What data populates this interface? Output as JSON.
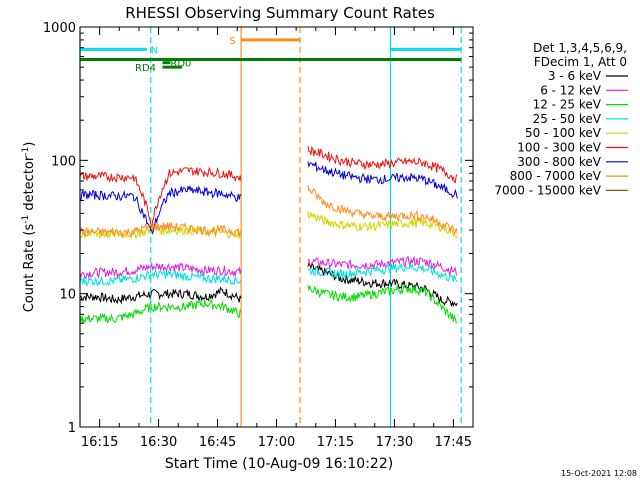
{
  "chart_data": {
    "type": "line",
    "title": "RHESSI Observing Summary Count Rates",
    "xlabel": "Start Time (10-Aug-09 16:10:22)",
    "ylabel_main": "Count Rate (s",
    "ylabel_sup1": "-1",
    "ylabel_mid": " detector",
    "ylabel_sup2": "-1",
    "ylabel_end": ")",
    "yscale": "log",
    "ylim": [
      1,
      1000
    ],
    "xlim_minutes": [
      16.0,
      15.0,
      14.0,
      13.0,
      12.0,
      11.0,
      10.0,
      9.0,
      8.0,
      7.0,
      6.0,
      5.0,
      4.0,
      3.0,
      2.0,
      1.0,
      0.0,
      0.0
    ],
    "x_range": [
      "16:10",
      "17:50"
    ],
    "x_ticks": [
      {
        "t": "16:15",
        "label": "16:15"
      },
      {
        "t": "16:30",
        "label": "16:30"
      },
      {
        "t": "16:45",
        "label": "16:45"
      },
      {
        "t": "17:00",
        "label": "17:00"
      },
      {
        "t": "17:15",
        "label": "17:15"
      },
      {
        "t": "17:30",
        "label": "17:30"
      },
      {
        "t": "17:45",
        "label": "17:45"
      }
    ],
    "y_ticks": [
      {
        "v": 1,
        "label": "1"
      },
      {
        "v": 10,
        "label": "10"
      },
      {
        "v": 100,
        "label": "100"
      },
      {
        "v": 1000,
        "label": "1000"
      }
    ],
    "legend_header": [
      "Det 1,3,4,5,6,9,",
      "FDecim 1, Att 0"
    ],
    "series": [
      {
        "name": "3 - 6 keV",
        "color": "#000000",
        "segments": [
          {
            "from": "16:10",
            "to": "16:51",
            "values": [
              9.5,
              9.5,
              9.0,
              9.5,
              10.0,
              10.0,
              10.0,
              9.5,
              10.5,
              9.0
            ]
          },
          {
            "from": "17:08",
            "to": "17:46",
            "values": [
              16.0,
              14.5,
              13.0,
              12.5,
              12.0,
              12.0,
              11.5,
              11.0,
              9.0,
              8.5
            ]
          }
        ]
      },
      {
        "name": "6 - 12 keV",
        "color": "#e020e0",
        "segments": [
          {
            "from": "16:10",
            "to": "16:51",
            "values": [
              14.0,
              14.5,
              14.5,
              15.0,
              16.0,
              16.0,
              15.5,
              15.0,
              15.0,
              14.5
            ]
          },
          {
            "from": "17:08",
            "to": "17:46",
            "values": [
              17.5,
              17.0,
              16.5,
              16.5,
              16.5,
              17.0,
              17.5,
              17.5,
              16.0,
              14.5
            ]
          }
        ]
      },
      {
        "name": "12 - 25 keV",
        "color": "#00dd00",
        "segments": [
          {
            "from": "16:10",
            "to": "16:51",
            "values": [
              6.5,
              6.5,
              6.5,
              7.0,
              8.0,
              8.0,
              8.0,
              8.5,
              8.0,
              7.0
            ]
          },
          {
            "from": "17:08",
            "to": "17:46",
            "values": [
              11.0,
              10.0,
              9.5,
              9.5,
              10.0,
              10.5,
              11.0,
              10.5,
              8.0,
              6.0
            ]
          }
        ]
      },
      {
        "name": "25 - 50 keV",
        "color": "#00e0e0",
        "segments": [
          {
            "from": "16:10",
            "to": "16:51",
            "values": [
              12.5,
              12.5,
              12.5,
              13.0,
              14.0,
              14.0,
              13.5,
              13.0,
              13.0,
              12.5
            ]
          },
          {
            "from": "17:08",
            "to": "17:46",
            "values": [
              15.0,
              14.5,
              14.0,
              14.5,
              15.0,
              15.5,
              16.0,
              15.5,
              14.0,
              12.5
            ]
          }
        ]
      },
      {
        "name": "50 - 100 keV",
        "color": "#d4d400",
        "segments": [
          {
            "from": "16:10",
            "to": "16:51",
            "values": [
              28.0,
              28.0,
              28.0,
              28.0,
              30.0,
              30.0,
              30.0,
              29.0,
              28.5,
              28.0
            ]
          },
          {
            "from": "17:08",
            "to": "17:46",
            "values": [
              40.0,
              35.0,
              33.0,
              32.0,
              32.0,
              33.0,
              34.0,
              34.0,
              32.0,
              28.0
            ]
          }
        ]
      },
      {
        "name": "100 - 300 keV",
        "color": "#ee1111",
        "segments": [
          {
            "from": "16:10",
            "to": "16:51",
            "values": [
              76.0,
              76.0,
              75.0,
              75.0,
              33.0,
              80.0,
              84.0,
              82.0,
              80.0,
              74.0
            ]
          },
          {
            "from": "17:08",
            "to": "17:46",
            "values": [
              120.0,
              110.0,
              100.0,
              95.0,
              93.0,
              95.0,
              98.0,
              96.0,
              85.0,
              72.0
            ]
          }
        ]
      },
      {
        "name": "300 - 800 keV",
        "color": "#0000dd",
        "segments": [
          {
            "from": "16:10",
            "to": "16:51",
            "values": [
              55.0,
              55.0,
              54.0,
              54.0,
              28.0,
              57.0,
              60.0,
              58.0,
              56.0,
              52.0
            ]
          },
          {
            "from": "17:08",
            "to": "17:46",
            "values": [
              95.0,
              85.0,
              78.0,
              74.0,
              72.0,
              73.0,
              75.0,
              72.0,
              63.0,
              55.0
            ]
          }
        ]
      },
      {
        "name": "800 - 7000 keV",
        "color": "#ff8c1a",
        "segments": [
          {
            "from": "16:10",
            "to": "16:51",
            "values": [
              29.0,
              29.0,
              29.0,
              29.0,
              32.0,
              32.0,
              31.0,
              30.0,
              30.0,
              29.0
            ]
          },
          {
            "from": "17:08",
            "to": "17:46",
            "values": [
              62.0,
              48.0,
              43.0,
              40.0,
              38.0,
              38.0,
              39.0,
              38.0,
              34.0,
              29.0
            ]
          }
        ]
      },
      {
        "name": "7000 - 15000 keV",
        "color": "#8b5a00",
        "segments": []
      }
    ],
    "vertical_lines": [
      {
        "t": "16:10",
        "color": "#00e0e0",
        "style": "solid"
      },
      {
        "t": "16:28",
        "color": "#00e0e0",
        "style": "dashed"
      },
      {
        "t": "16:51",
        "color": "#ff8c1a",
        "style": "solid"
      },
      {
        "t": "17:06",
        "color": "#ff8c1a",
        "style": "dashed"
      },
      {
        "t": "17:29",
        "color": "#00e0e0",
        "style": "solid"
      },
      {
        "t": "17:47",
        "color": "#00e0e0",
        "style": "dashed"
      }
    ],
    "bars": [
      {
        "label": "N",
        "color": "#00e0e0",
        "from": "16:10",
        "to": "16:27",
        "y": 680,
        "label_at": "16:28"
      },
      {
        "label": "",
        "color": "#00e0e0",
        "from": "17:29",
        "to": "17:47",
        "y": 680
      },
      {
        "label": "S",
        "color": "#ff8c1a",
        "from": "16:51",
        "to": "17:06",
        "y": 800,
        "label_at": "16:48"
      },
      {
        "label": "",
        "color": "#008000",
        "from": "16:10",
        "to": "17:47",
        "y": 570
      },
      {
        "label": "RD4",
        "color": "#008000",
        "from": "16:31",
        "to": "16:36",
        "y": 500,
        "label_at": "16:24"
      },
      {
        "label": "RD0",
        "color": "#008000",
        "from": "16:31",
        "to": "16:33",
        "y": 540,
        "label_at": "16:33"
      }
    ]
  },
  "timestamp": "15-Oct-2021 12:08"
}
